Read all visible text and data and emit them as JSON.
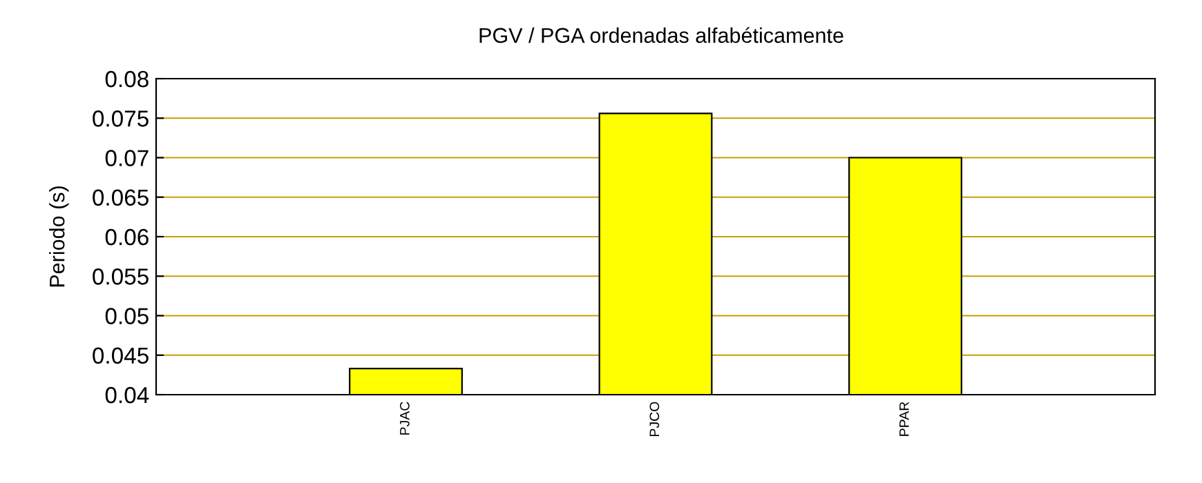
{
  "chart_data": {
    "type": "bar",
    "title": "PGV / PGA ordenadas alfabéticamente",
    "ylabel": "Periodo (s)",
    "categories": [
      "PJAC",
      "PJCO",
      "PPAR"
    ],
    "values": [
      0.0433,
      0.0756,
      0.07
    ],
    "color": "#ffff00",
    "ylim": [
      0.04,
      0.08
    ],
    "yticks": [
      0.04,
      0.045,
      0.05,
      0.055,
      0.06,
      0.065,
      0.07,
      0.075,
      0.08
    ],
    "grid": "y",
    "legend": false
  }
}
